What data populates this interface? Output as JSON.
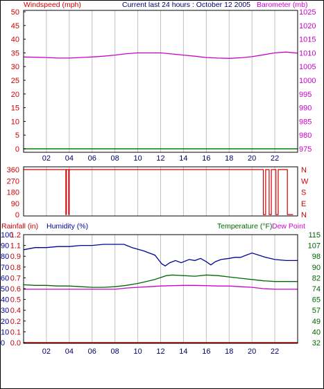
{
  "colors": {
    "wind": "#cc0000",
    "barometer": "#cc00cc",
    "humidity": "#000099",
    "temperature": "#006600",
    "dewpoint": "#cc00cc",
    "rainfall": "#cc0000",
    "winddir": "#cc0000",
    "grid": "#c0c0c0",
    "axis": "#000000",
    "hour_label": "#000066"
  },
  "chart_data": [
    {
      "type": "line",
      "title": "Current last 24 hours : October 12 2005",
      "left_axis_label": "Windspeed (mph)",
      "right_axis_label": "Barometer (mb)",
      "x_ticks": [
        "02",
        "04",
        "06",
        "08",
        "10",
        "12",
        "14",
        "16",
        "18",
        "20",
        "22"
      ],
      "left_ticks": [
        "50",
        "45",
        "40",
        "35",
        "30",
        "25",
        "20",
        "15",
        "10",
        "5",
        "0"
      ],
      "right_ticks": [
        "1025",
        "1020",
        "1015",
        "1010",
        "1005",
        "1000",
        "995",
        "990",
        "985",
        "980",
        "975"
      ],
      "xlim": [
        0,
        24
      ],
      "left_ylim": [
        0,
        50
      ],
      "right_ylim": [
        975,
        1025
      ],
      "series": [
        {
          "name": "Windspeed",
          "axis": "left",
          "x": [
            0,
            24
          ],
          "y": [
            0,
            0
          ]
        },
        {
          "name": "Barometer",
          "axis": "right",
          "x": [
            0,
            1,
            2,
            3,
            4,
            5,
            6,
            7,
            8,
            9,
            10,
            11,
            12,
            13,
            14,
            15,
            16,
            17,
            18,
            19,
            20,
            21,
            22,
            23,
            24
          ],
          "y": [
            1008.5,
            1008.4,
            1008.3,
            1008.1,
            1008.1,
            1008.3,
            1008.5,
            1008.8,
            1009.2,
            1009.7,
            1010,
            1010,
            1010,
            1009.6,
            1009.2,
            1008.8,
            1008.3,
            1008.1,
            1008.0,
            1008.2,
            1008.6,
            1009.3,
            1010.0,
            1010.3,
            1009.9
          ]
        }
      ]
    },
    {
      "type": "line",
      "left_ticks": [
        "360",
        "270",
        "180",
        "90",
        "0"
      ],
      "right_ticks": [
        "N",
        "W",
        "S",
        "E",
        "N"
      ],
      "xlim": [
        0,
        24
      ],
      "ylim": [
        0,
        360
      ],
      "series": [
        {
          "name": "Wind Direction",
          "x": [
            0,
            3.7,
            3.7,
            3.75,
            3.75,
            3.95,
            3.95,
            4.0,
            4.0,
            21.0,
            21.0,
            21.2,
            21.2,
            21.5,
            21.5,
            21.7,
            21.7,
            22.1,
            22.1,
            22.3,
            22.3,
            23.1,
            23.1,
            23.6
          ],
          "y": [
            360,
            360,
            0,
            0,
            360,
            360,
            0,
            0,
            360,
            360,
            0,
            0,
            360,
            360,
            0,
            0,
            360,
            360,
            0,
            0,
            360,
            360,
            0,
            0
          ]
        }
      ]
    },
    {
      "type": "line",
      "left_axis_label_1": "Rainfall (in)",
      "left_axis_label_2": "Humidity (%)",
      "right_axis_label_1": "Temperature (°F)",
      "right_axis_label_2": "Dew Point",
      "x_ticks": [
        "02",
        "04",
        "06",
        "08",
        "10",
        "12",
        "14",
        "16",
        "18",
        "20",
        "22"
      ],
      "humidity_ticks": [
        "100",
        "90",
        "80",
        "70",
        "60",
        "50",
        "40",
        "30",
        "20",
        "10",
        "0"
      ],
      "rainfall_ticks": [
        "1.2",
        "1.1",
        "0.9",
        "0.8",
        "0.7",
        "0.6",
        "0.5",
        "0.4",
        "0.2",
        "0.1",
        "0.0"
      ],
      "temp_ticks": [
        "115",
        "107",
        "98",
        "90",
        "82",
        "74",
        "65",
        "57",
        "49",
        "40",
        "32"
      ],
      "xlim": [
        0,
        24
      ],
      "humidity_ylim": [
        0,
        100
      ],
      "temp_ylim": [
        32,
        115
      ],
      "series": [
        {
          "name": "Humidity",
          "axis": "humidity",
          "x": [
            0,
            1,
            2,
            3,
            4,
            5,
            6,
            7,
            8,
            8.8,
            9.5,
            10.5,
            11,
            11.5,
            11.8,
            12.1,
            12.4,
            12.8,
            13.3,
            13.8,
            14.5,
            15,
            15.5,
            16,
            16.4,
            16.8,
            17.3,
            18,
            18.5,
            19,
            19.5,
            20,
            20.6,
            21.2,
            22,
            23,
            24
          ],
          "y": [
            86,
            88,
            88,
            89,
            89,
            90,
            90,
            91,
            91,
            91,
            88,
            85,
            83,
            81,
            77,
            73,
            71,
            74,
            76,
            74,
            77,
            76,
            78,
            75,
            72,
            75,
            77,
            78,
            79,
            79,
            81,
            83,
            81,
            79,
            77,
            76,
            76
          ]
        },
        {
          "name": "Temperature",
          "axis": "temp",
          "x": [
            0,
            1,
            2,
            3,
            4,
            5,
            6,
            7,
            8,
            9,
            10,
            11,
            11.5,
            12,
            12.5,
            13,
            14,
            15,
            16,
            17,
            18,
            19,
            20,
            21,
            22,
            23,
            24
          ],
          "y": [
            76.5,
            76,
            76,
            75.5,
            75.5,
            75,
            74.5,
            74.5,
            75,
            76,
            77.5,
            79.5,
            80.5,
            82,
            83.5,
            84,
            83.5,
            83,
            84,
            83.5,
            82.5,
            81.5,
            80.5,
            79.5,
            79,
            79,
            79
          ]
        },
        {
          "name": "Dew Point",
          "axis": "temp",
          "x": [
            0,
            2,
            4,
            6,
            8,
            9,
            10,
            11,
            12,
            13,
            14,
            15,
            16,
            17,
            18,
            19,
            20,
            21,
            22,
            23,
            24
          ],
          "y": [
            73,
            73,
            73,
            73,
            73,
            74,
            74.5,
            75,
            75.5,
            75.8,
            76,
            76,
            75.8,
            75.5,
            75.5,
            75,
            74.5,
            73.5,
            73,
            73,
            73
          ]
        },
        {
          "name": "Rainfall",
          "axis": "humidity",
          "x": [
            0,
            24
          ],
          "y": [
            0,
            0
          ]
        }
      ]
    }
  ]
}
